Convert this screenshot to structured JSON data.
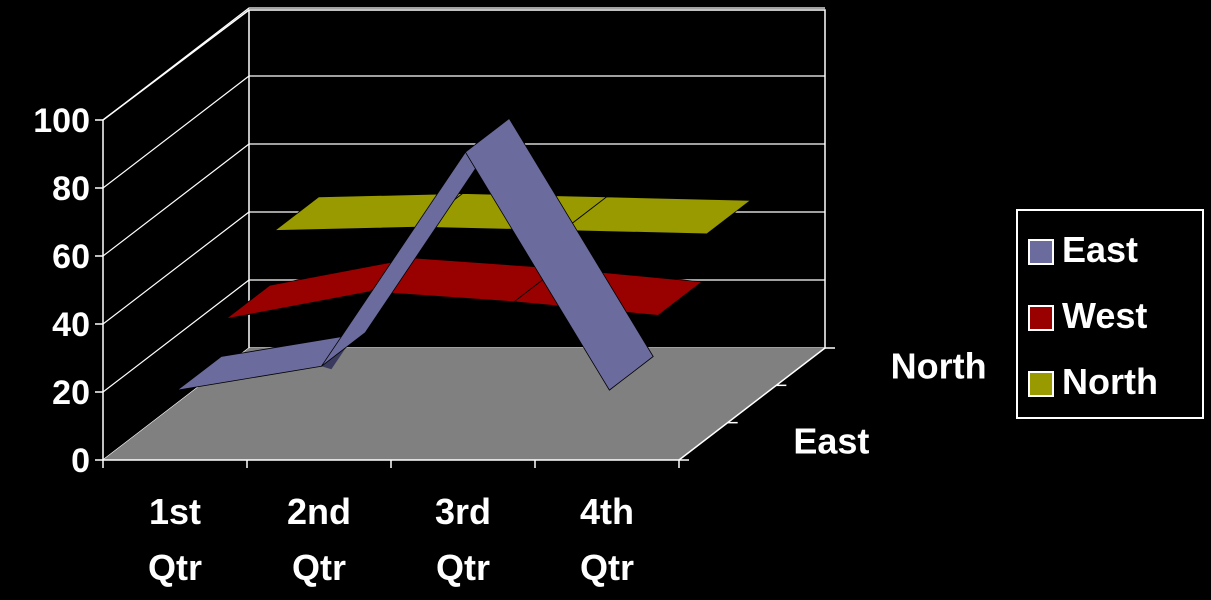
{
  "chart_data": {
    "type": "3d-line-ribbon",
    "categories": [
      "1st Qtr",
      "2nd Qtr",
      "3rd Qtr",
      "4th Qtr"
    ],
    "category_lines": [
      [
        "1st",
        "Qtr"
      ],
      [
        "2nd",
        "Qtr"
      ],
      [
        "3rd",
        "Qtr"
      ],
      [
        "4th",
        "Qtr"
      ]
    ],
    "series": [
      {
        "name": "East",
        "values": [
          20,
          27,
          90,
          20
        ]
      },
      {
        "name": "West",
        "values": [
          30,
          38,
          35,
          31
        ]
      },
      {
        "name": "North",
        "values": [
          45,
          46,
          45,
          44
        ]
      }
    ],
    "depth_labels": [
      "East",
      "North"
    ],
    "y_ticks": [
      "0",
      "20",
      "40",
      "60",
      "80",
      "100"
    ],
    "ylim": [
      0,
      100
    ],
    "grid": true,
    "legend_position": "right"
  },
  "colors": {
    "background": "#000000",
    "floor": "#808080",
    "axis": "#ffffff",
    "East": "#6b6b9e",
    "East_side": "#3a3a5e",
    "West": "#990000",
    "West_side": "#5a0000",
    "North": "#999900",
    "North_side": "#5a5a00"
  },
  "legend": {
    "items": [
      {
        "label": "East",
        "color": "#6b6b9e"
      },
      {
        "label": "West",
        "color": "#990000"
      },
      {
        "label": "North",
        "color": "#999900"
      }
    ]
  }
}
